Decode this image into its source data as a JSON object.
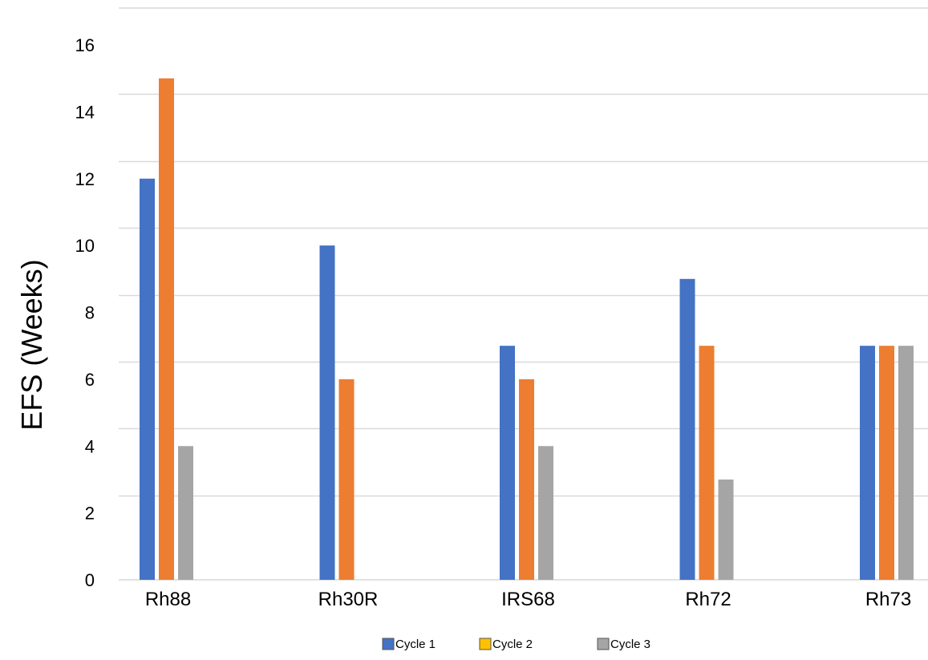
{
  "chart_data": {
    "type": "bar",
    "ylabel": "EFS (Weeks)",
    "xlabel": "",
    "categories": [
      "Rh88",
      "Rh30R",
      "IRS68",
      "Rh72",
      "Rh73"
    ],
    "series": [
      {
        "name": "Cycle 1",
        "values": [
          12,
          10,
          7,
          9,
          7
        ],
        "color": "#4472C4"
      },
      {
        "name": "Cycle 2",
        "values": [
          15,
          6,
          6,
          7,
          7
        ],
        "color": "#ED7D31"
      },
      {
        "name": "Cycle 3",
        "values": [
          4,
          0,
          4,
          3,
          7
        ],
        "color": "#A5A5A5"
      }
    ],
    "legend_swatch_colors": [
      "#4472C4",
      "#FFC000",
      "#A5A5A5"
    ],
    "ylim": [
      0,
      16
    ],
    "yticks": [
      0,
      2,
      4,
      6,
      8,
      10,
      12,
      14,
      16
    ],
    "grid": true,
    "legend_position": "bottom"
  }
}
